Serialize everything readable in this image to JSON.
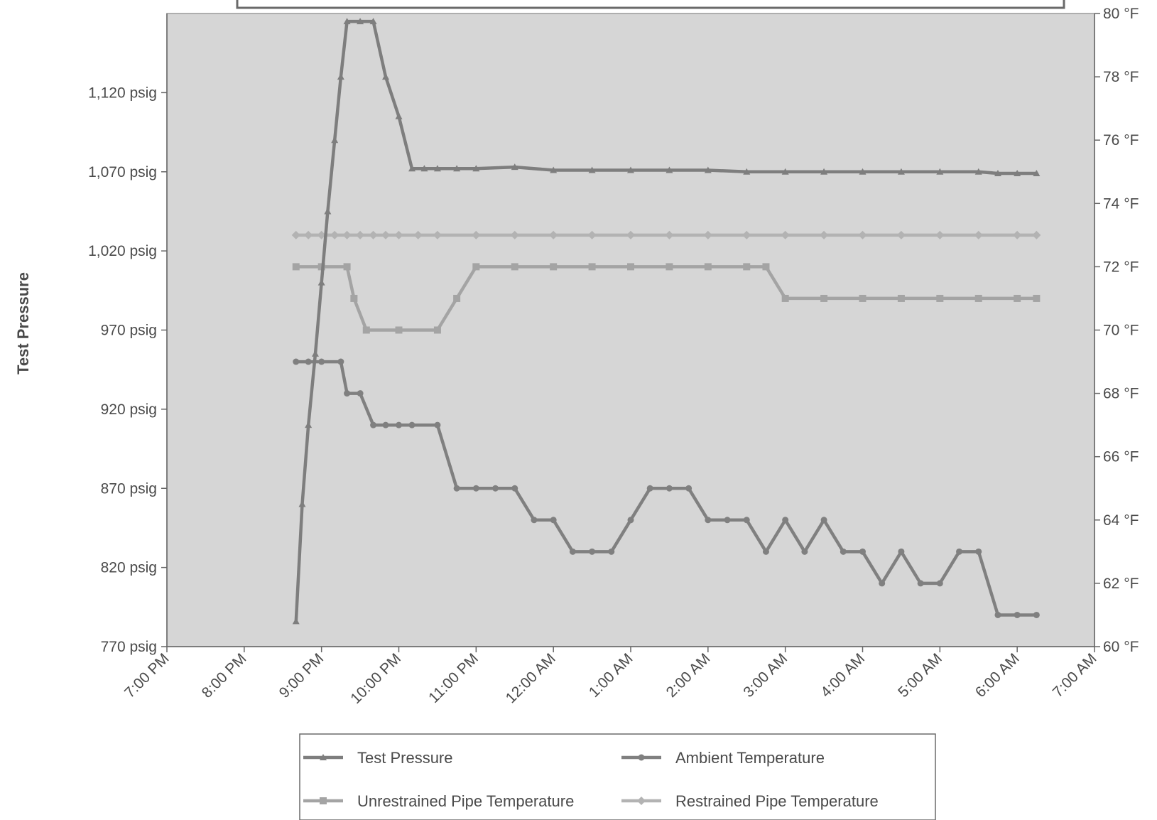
{
  "chart_data": {
    "type": "line",
    "title": "",
    "xlabel": "",
    "ylabel": "Test Pressure",
    "y2label": "",
    "x_ticks": [
      "7:00 PM",
      "8:00 PM",
      "9:00 PM",
      "10:00 PM",
      "11:00 PM",
      "12:00 AM",
      "1:00 AM",
      "2:00 AM",
      "3:00 AM",
      "4:00 AM",
      "5:00 AM",
      "6:00 AM",
      "7:00 AM"
    ],
    "x_range_hours": [
      19,
      31
    ],
    "y_left_ticks": [
      "770 psig",
      "820 psig",
      "870 psig",
      "920 psig",
      "970 psig",
      "1,020 psig",
      "1,070 psig",
      "1,120 psig"
    ],
    "y_left_range": [
      770,
      1170
    ],
    "y_right_ticks": [
      "60 °F",
      "62 °F",
      "64 °F",
      "66 °F",
      "68 °F",
      "70 °F",
      "72 °F",
      "74 °F",
      "76 °F",
      "78 °F",
      "80 °F"
    ],
    "y_right_range": [
      60,
      80
    ],
    "grid": false,
    "legend_position": "bottom",
    "series": [
      {
        "name": "Test Pressure",
        "axis": "left",
        "marker": "triangle",
        "x": [
          20.67,
          20.75,
          20.83,
          20.92,
          21.0,
          21.08,
          21.17,
          21.25,
          21.33,
          21.5,
          21.67,
          21.83,
          22.0,
          22.17,
          22.33,
          22.5,
          22.75,
          23.0,
          23.5,
          24.0,
          24.5,
          25.0,
          25.5,
          26.0,
          26.5,
          27.0,
          27.5,
          28.0,
          28.5,
          29.0,
          29.5,
          29.75,
          30.0,
          30.25
        ],
        "y": [
          786,
          860,
          910,
          955,
          1000,
          1045,
          1090,
          1130,
          1165,
          1165,
          1165,
          1130,
          1105,
          1072,
          1072,
          1072,
          1072,
          1072,
          1073,
          1071,
          1071,
          1071,
          1071,
          1071,
          1070,
          1070,
          1070,
          1070,
          1070,
          1070,
          1070,
          1069,
          1069,
          1069
        ]
      },
      {
        "name": "Ambient Temperature",
        "axis": "right",
        "marker": "circle",
        "x": [
          20.67,
          20.83,
          21.0,
          21.25,
          21.33,
          21.5,
          21.67,
          21.83,
          22.0,
          22.17,
          22.5,
          22.75,
          23.0,
          23.25,
          23.5,
          23.75,
          24.0,
          24.25,
          24.5,
          24.75,
          25.0,
          25.25,
          25.5,
          25.75,
          26.0,
          26.25,
          26.5,
          26.75,
          27.0,
          27.25,
          27.5,
          27.75,
          28.0,
          28.25,
          28.5,
          28.75,
          29.0,
          29.25,
          29.5,
          29.75,
          30.0,
          30.25
        ],
        "y": [
          69,
          69,
          69,
          69,
          68,
          68,
          67,
          67,
          67,
          67,
          67,
          65,
          65,
          65,
          65,
          64,
          64,
          63,
          63,
          63,
          64,
          65,
          65,
          65,
          64,
          64,
          64,
          63,
          64,
          63,
          64,
          63,
          63,
          62,
          63,
          62,
          62,
          63,
          63,
          61,
          61,
          61
        ]
      },
      {
        "name": "Unrestrained Pipe Temperature",
        "axis": "right",
        "marker": "square",
        "x": [
          20.67,
          21.0,
          21.33,
          21.42,
          21.58,
          22.0,
          22.5,
          22.75,
          23.0,
          23.5,
          24.0,
          24.5,
          25.0,
          25.5,
          26.0,
          26.5,
          26.75,
          27.0,
          27.5,
          28.0,
          28.5,
          29.0,
          29.5,
          30.0,
          30.25
        ],
        "y": [
          72,
          72,
          72,
          71,
          70,
          70,
          70,
          71,
          72,
          72,
          72,
          72,
          72,
          72,
          72,
          72,
          72,
          71,
          71,
          71,
          71,
          71,
          71,
          71,
          71
        ]
      },
      {
        "name": "Restrained Pipe Temperature",
        "axis": "right",
        "marker": "diamond",
        "x": [
          20.67,
          20.83,
          21.0,
          21.17,
          21.33,
          21.5,
          21.67,
          21.83,
          22.0,
          22.25,
          22.5,
          23.0,
          23.5,
          24.0,
          24.5,
          25.0,
          25.5,
          26.0,
          26.5,
          27.0,
          27.5,
          28.0,
          28.5,
          29.0,
          29.5,
          30.0,
          30.25
        ],
        "y": [
          73,
          73,
          73,
          73,
          73,
          73,
          73,
          73,
          73,
          73,
          73,
          73,
          73,
          73,
          73,
          73,
          73,
          73,
          73,
          73,
          73,
          73,
          73,
          73,
          73,
          73,
          73
        ]
      }
    ]
  },
  "legend": {
    "items": [
      "Test Pressure",
      "Ambient Temperature",
      "Unrestrained Pipe Temperature",
      "Restrained Pipe Temperature"
    ]
  },
  "colors": {
    "plot_background": "#d6d6d6",
    "axis": "#666666",
    "test_pressure": "#7e7e7e",
    "ambient": "#808080",
    "unrestrained": "#a4a4a4",
    "restrained": "#b3b3b3"
  }
}
